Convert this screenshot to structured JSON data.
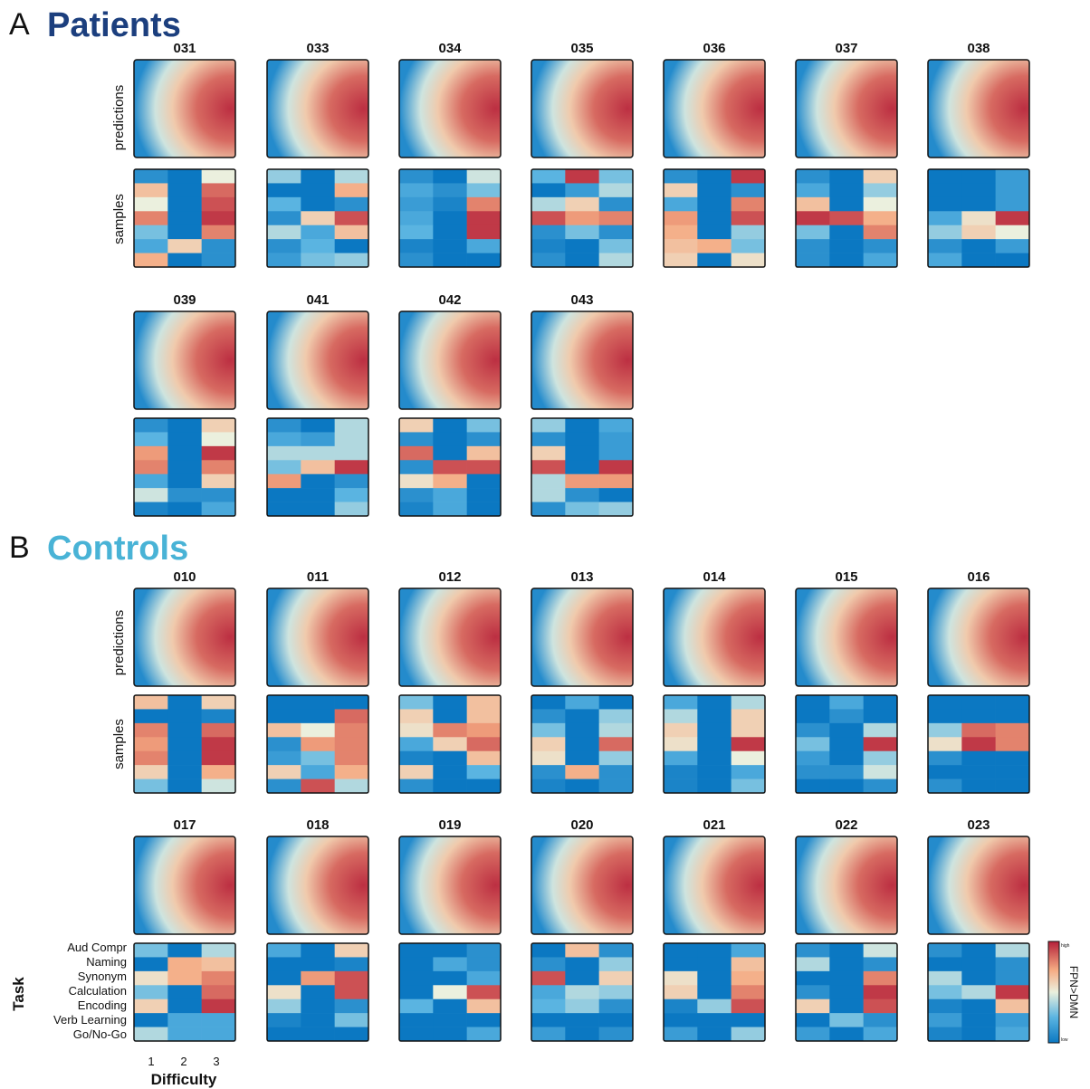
{
  "chart_data": {
    "type": "heatmap",
    "colormap": {
      "low": "#0b78c2",
      "mid": "#eaf2ea",
      "high": "#b5203a"
    },
    "colorbar": {
      "label": "FPN>DMN",
      "high_label": "high",
      "low_label": "low"
    },
    "row_labels": [
      "predictions",
      "samples"
    ],
    "task_axis": {
      "label": "Task",
      "tasks": [
        "Aud Compr",
        "Naming",
        "Synonym",
        "Calculation",
        "Encoding",
        "Verb Learning",
        "Go/No-Go"
      ]
    },
    "difficulty_axis": {
      "label": "Difficulty",
      "ticks": [
        "1",
        "2",
        "3"
      ]
    },
    "sections": [
      {
        "letter": "A",
        "title": "Patients",
        "title_color": "#1c3f7e",
        "subjects": [
          {
            "id": "031",
            "samples": [
              [
                0.1,
                0,
                0.5
              ],
              [
                0.65,
                0,
                0.85
              ],
              [
                0.5,
                0,
                0.9
              ],
              [
                0.8,
                0,
                0.95
              ],
              [
                0.3,
                0,
                0.8
              ],
              [
                0.2,
                0.6,
                0.1
              ],
              [
                0.7,
                0,
                0.1
              ]
            ]
          },
          {
            "id": "033",
            "samples": [
              [
                0.35,
                0,
                0.4
              ],
              [
                0,
                0,
                0.7
              ],
              [
                0.25,
                0,
                0.1
              ],
              [
                0.1,
                0.6,
                0.9
              ],
              [
                0.4,
                0.2,
                0.65
              ],
              [
                0.1,
                0.25,
                0
              ],
              [
                0.15,
                0.3,
                0.35
              ]
            ]
          },
          {
            "id": "034",
            "samples": [
              [
                0.1,
                0,
                0.45
              ],
              [
                0.2,
                0.1,
                0.3
              ],
              [
                0.15,
                0.05,
                0.8
              ],
              [
                0.2,
                0,
                0.95
              ],
              [
                0.25,
                0,
                0.95
              ],
              [
                0.05,
                0,
                0.2
              ],
              [
                0.1,
                0,
                0
              ]
            ]
          },
          {
            "id": "035",
            "samples": [
              [
                0.25,
                0.95,
                0.3
              ],
              [
                0,
                0.15,
                0.4
              ],
              [
                0.4,
                0.6,
                0.1
              ],
              [
                0.9,
                0.75,
                0.8
              ],
              [
                0.1,
                0.3,
                0.1
              ],
              [
                0.05,
                0,
                0.3
              ],
              [
                0.1,
                0,
                0.4
              ]
            ]
          },
          {
            "id": "036",
            "samples": [
              [
                0.1,
                0,
                0.95
              ],
              [
                0.6,
                0,
                0.1
              ],
              [
                0.2,
                0,
                0.8
              ],
              [
                0.75,
                0,
                0.9
              ],
              [
                0.7,
                0,
                0.35
              ],
              [
                0.65,
                0.7,
                0.3
              ],
              [
                0.6,
                0,
                0.55
              ]
            ]
          },
          {
            "id": "037",
            "samples": [
              [
                0.1,
                0,
                0.6
              ],
              [
                0.2,
                0,
                0.35
              ],
              [
                0.65,
                0,
                0.5
              ],
              [
                0.95,
                0.9,
                0.7
              ],
              [
                0.3,
                0,
                0.8
              ],
              [
                0.1,
                0,
                0.1
              ],
              [
                0.1,
                0,
                0.2
              ]
            ]
          },
          {
            "id": "038",
            "samples": [
              [
                0,
                0,
                0.15
              ],
              [
                0,
                0,
                0.15
              ],
              [
                0,
                0,
                0.15
              ],
              [
                0.2,
                0.55,
                0.95
              ],
              [
                0.35,
                0.6,
                0.5
              ],
              [
                0.1,
                0,
                0.15
              ],
              [
                0.2,
                0,
                0
              ]
            ]
          },
          {
            "id": "039",
            "samples": [
              [
                0.1,
                0,
                0.6
              ],
              [
                0.25,
                0,
                0.5
              ],
              [
                0.75,
                0,
                0.95
              ],
              [
                0.8,
                0,
                0.8
              ],
              [
                0.2,
                0,
                0.6
              ],
              [
                0.45,
                0.1,
                0.1
              ],
              [
                0.05,
                0,
                0.2
              ]
            ]
          },
          {
            "id": "041",
            "samples": [
              [
                0.1,
                0,
                0.4
              ],
              [
                0.2,
                0.15,
                0.4
              ],
              [
                0.4,
                0.4,
                0.4
              ],
              [
                0.3,
                0.65,
                0.95
              ],
              [
                0.75,
                0,
                0.1
              ],
              [
                0,
                0,
                0.25
              ],
              [
                0,
                0,
                0.35
              ]
            ]
          },
          {
            "id": "042",
            "samples": [
              [
                0.6,
                0,
                0.3
              ],
              [
                0.1,
                0,
                0.1
              ],
              [
                0.85,
                0,
                0.65
              ],
              [
                0.1,
                0.9,
                0.9
              ],
              [
                0.55,
                0.7,
                0
              ],
              [
                0.1,
                0.2,
                0
              ],
              [
                0.05,
                0.2,
                0
              ]
            ]
          },
          {
            "id": "043",
            "samples": [
              [
                0.35,
                0,
                0.2
              ],
              [
                0.1,
                0,
                0.15
              ],
              [
                0.6,
                0,
                0.15
              ],
              [
                0.9,
                0,
                0.95
              ],
              [
                0.4,
                0.75,
                0.75
              ],
              [
                0.4,
                0.1,
                0
              ],
              [
                0.1,
                0.3,
                0.35
              ]
            ]
          }
        ]
      },
      {
        "letter": "B",
        "title": "Controls",
        "title_color": "#49b3d6",
        "subjects": [
          {
            "id": "010",
            "samples": [
              [
                0.65,
                0,
                0.6
              ],
              [
                0,
                0,
                0.05
              ],
              [
                0.8,
                0,
                0.85
              ],
              [
                0.75,
                0,
                0.95
              ],
              [
                0.8,
                0,
                0.95
              ],
              [
                0.6,
                0,
                0.7
              ],
              [
                0.3,
                0,
                0.45
              ]
            ]
          },
          {
            "id": "011",
            "samples": [
              [
                0,
                0,
                0
              ],
              [
                0,
                0,
                0.85
              ],
              [
                0.65,
                0.5,
                0.8
              ],
              [
                0.1,
                0.75,
                0.8
              ],
              [
                0.15,
                0.3,
                0.8
              ],
              [
                0.6,
                0.2,
                0.7
              ],
              [
                0.1,
                0.9,
                0.4
              ]
            ]
          },
          {
            "id": "012",
            "samples": [
              [
                0.3,
                0,
                0.65
              ],
              [
                0.6,
                0,
                0.65
              ],
              [
                0.55,
                0.8,
                0.75
              ],
              [
                0.2,
                0.6,
                0.85
              ],
              [
                0.05,
                0,
                0.65
              ],
              [
                0.6,
                0,
                0.25
              ],
              [
                0.1,
                0,
                0
              ]
            ]
          },
          {
            "id": "013",
            "samples": [
              [
                0,
                0.2,
                0
              ],
              [
                0.1,
                0,
                0.35
              ],
              [
                0.3,
                0,
                0.4
              ],
              [
                0.6,
                0,
                0.85
              ],
              [
                0.55,
                0,
                0.35
              ],
              [
                0.1,
                0.7,
                0.1
              ],
              [
                0.05,
                0,
                0.1
              ]
            ]
          },
          {
            "id": "014",
            "samples": [
              [
                0.2,
                0,
                0.4
              ],
              [
                0.4,
                0,
                0.6
              ],
              [
                0.6,
                0,
                0.6
              ],
              [
                0.55,
                0,
                0.95
              ],
              [
                0.2,
                0,
                0.5
              ],
              [
                0.05,
                0,
                0.2
              ],
              [
                0.05,
                0,
                0.3
              ]
            ]
          },
          {
            "id": "015",
            "samples": [
              [
                0,
                0.2,
                0
              ],
              [
                0,
                0.1,
                0
              ],
              [
                0.1,
                0,
                0.4
              ],
              [
                0.3,
                0,
                0.95
              ],
              [
                0.15,
                0,
                0.35
              ],
              [
                0.1,
                0.1,
                0.45
              ],
              [
                0,
                0,
                0.1
              ]
            ]
          },
          {
            "id": "016",
            "samples": [
              [
                0,
                0,
                0
              ],
              [
                0,
                0,
                0
              ],
              [
                0.35,
                0.85,
                0.8
              ],
              [
                0.55,
                0.95,
                0.8
              ],
              [
                0.1,
                0,
                0
              ],
              [
                0,
                0,
                0
              ],
              [
                0.1,
                0,
                0
              ]
            ]
          },
          {
            "id": "017",
            "samples": [
              [
                0.3,
                0,
                0.4
              ],
              [
                0,
                0.7,
                0.65
              ],
              [
                0.55,
                0.7,
                0.8
              ],
              [
                0.3,
                0,
                0.85
              ],
              [
                0.6,
                0,
                0.95
              ],
              [
                0,
                0.2,
                0.2
              ],
              [
                0.4,
                0.2,
                0.2
              ]
            ]
          },
          {
            "id": "018",
            "samples": [
              [
                0.2,
                0,
                0.6
              ],
              [
                0,
                0,
                0.05
              ],
              [
                0,
                0.75,
                0.9
              ],
              [
                0.55,
                0,
                0.9
              ],
              [
                0.35,
                0,
                0.1
              ],
              [
                0.05,
                0,
                0.3
              ],
              [
                0,
                0,
                0
              ]
            ]
          },
          {
            "id": "019",
            "samples": [
              [
                0,
                0,
                0.1
              ],
              [
                0,
                0.2,
                0.1
              ],
              [
                0,
                0,
                0.2
              ],
              [
                0,
                0.5,
                0.9
              ],
              [
                0.25,
                0,
                0.65
              ],
              [
                0,
                0,
                0
              ],
              [
                0,
                0,
                0.2
              ]
            ]
          },
          {
            "id": "020",
            "samples": [
              [
                0,
                0.65,
                0.1
              ],
              [
                0.1,
                0,
                0.35
              ],
              [
                0.9,
                0,
                0.6
              ],
              [
                0.2,
                0.4,
                0.35
              ],
              [
                0.25,
                0.35,
                0.1
              ],
              [
                0,
                0,
                0
              ],
              [
                0.15,
                0,
                0.1
              ]
            ]
          },
          {
            "id": "021",
            "samples": [
              [
                0,
                0,
                0.2
              ],
              [
                0,
                0,
                0.65
              ],
              [
                0.55,
                0,
                0.7
              ],
              [
                0.6,
                0,
                0.8
              ],
              [
                0.05,
                0.35,
                0.9
              ],
              [
                0,
                0,
                0
              ],
              [
                0.15,
                0,
                0.35
              ]
            ]
          },
          {
            "id": "022",
            "samples": [
              [
                0.1,
                0,
                0.45
              ],
              [
                0.4,
                0,
                0.1
              ],
              [
                0,
                0,
                0.8
              ],
              [
                0.1,
                0,
                0.95
              ],
              [
                0.6,
                0,
                0.9
              ],
              [
                0,
                0.3,
                0.1
              ],
              [
                0.15,
                0,
                0.2
              ]
            ]
          },
          {
            "id": "023",
            "samples": [
              [
                0.1,
                0,
                0.4
              ],
              [
                0,
                0,
                0.1
              ],
              [
                0.4,
                0,
                0.1
              ],
              [
                0.3,
                0.4,
                0.95
              ],
              [
                0.05,
                0,
                0.65
              ],
              [
                0.15,
                0,
                0.15
              ],
              [
                0.05,
                0,
                0.2
              ]
            ]
          }
        ]
      }
    ]
  }
}
